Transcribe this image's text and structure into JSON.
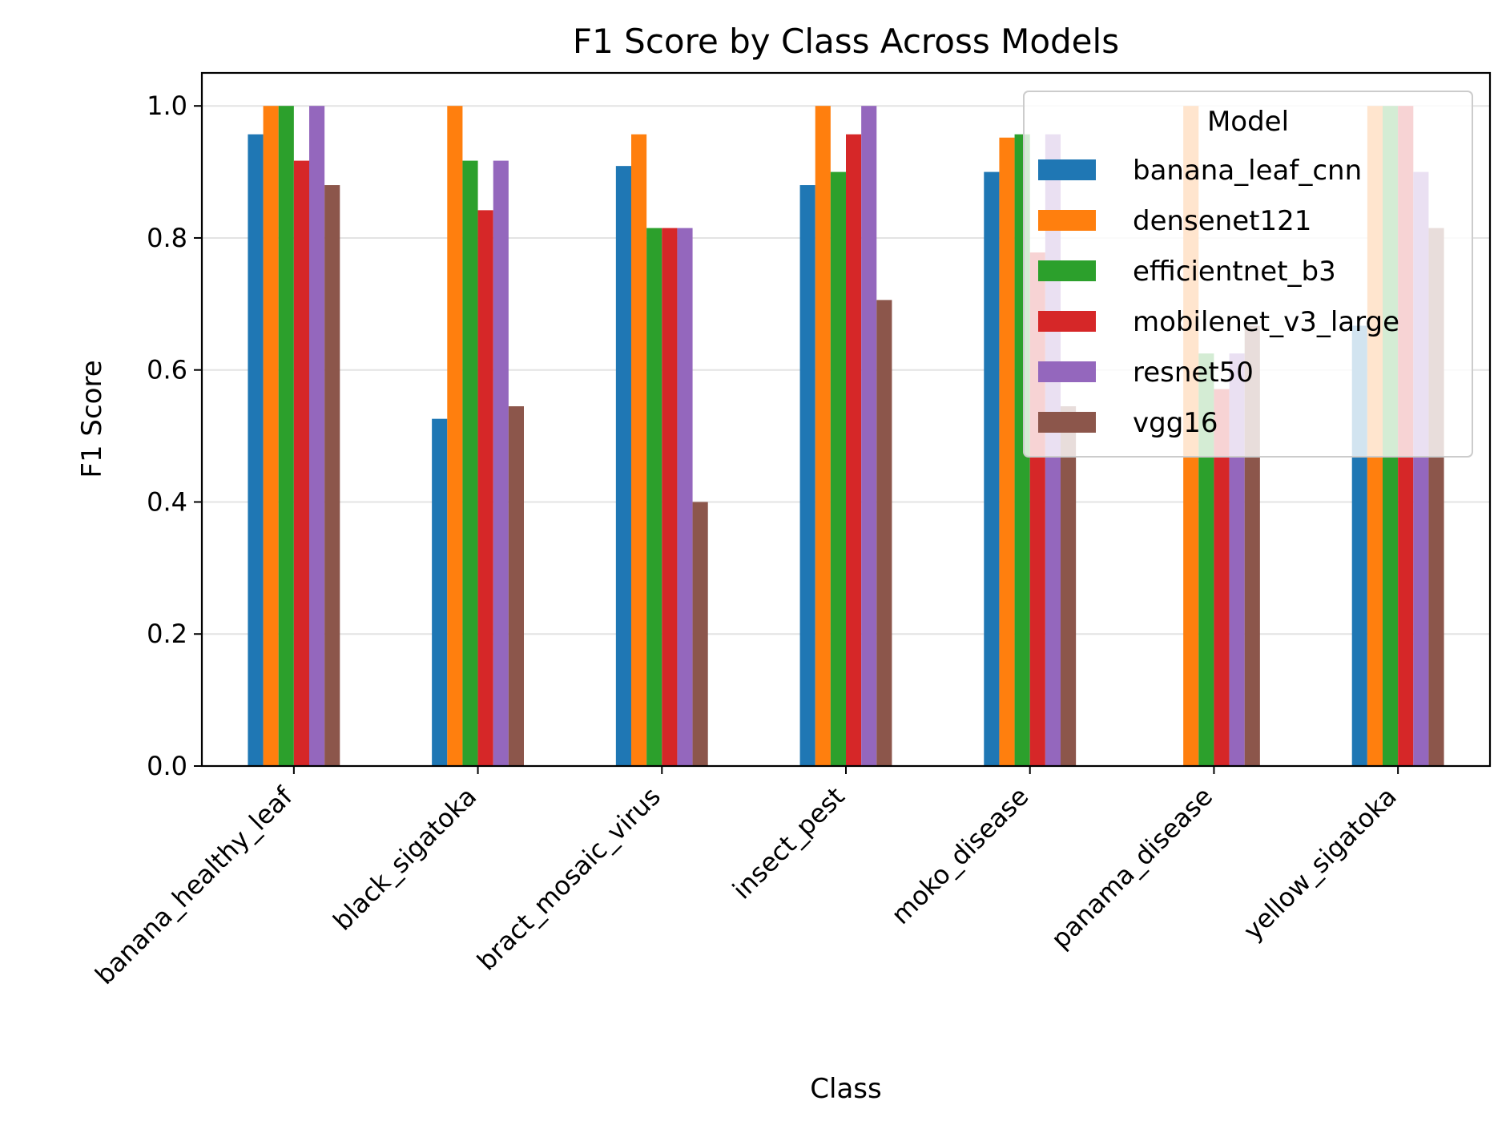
{
  "chart_data": {
    "type": "bar",
    "title": "F1 Score by Class Across Models",
    "xlabel": "Class",
    "ylabel": "F1 Score",
    "ylim": [
      0,
      1.05
    ],
    "yticks": [
      "0.0",
      "0.2",
      "0.4",
      "0.6",
      "0.8",
      "1.0"
    ],
    "grid": "y",
    "legend": {
      "title": "Model",
      "position": "top-right"
    },
    "categories": [
      "banana_healthy_leaf",
      "black_sigatoka",
      "bract_mosaic_virus",
      "insect_pest",
      "moko_disease",
      "panama_disease",
      "yellow_sigatoka"
    ],
    "series": [
      {
        "name": "banana_leaf_cnn",
        "color": "#1f77b4",
        "values": [
          0.957,
          0.526,
          0.909,
          0.88,
          0.9,
          0.0,
          0.667
        ]
      },
      {
        "name": "densenet121",
        "color": "#ff7f0e",
        "values": [
          1.0,
          1.0,
          0.957,
          1.0,
          0.952,
          1.0,
          1.0
        ]
      },
      {
        "name": "efficientnet_b3",
        "color": "#2ca02c",
        "values": [
          1.0,
          0.917,
          0.815,
          0.9,
          0.957,
          0.625,
          1.0
        ]
      },
      {
        "name": "mobilenet_v3_large",
        "color": "#d62728",
        "values": [
          0.917,
          0.842,
          0.815,
          0.957,
          0.778,
          0.571,
          1.0
        ]
      },
      {
        "name": "resnet50",
        "color": "#9467bd",
        "values": [
          1.0,
          0.917,
          0.815,
          1.0,
          0.957,
          0.625,
          0.9
        ]
      },
      {
        "name": "vgg16",
        "color": "#8c564b",
        "values": [
          0.88,
          0.545,
          0.4,
          0.706,
          0.545,
          0.667,
          0.815
        ]
      }
    ]
  }
}
